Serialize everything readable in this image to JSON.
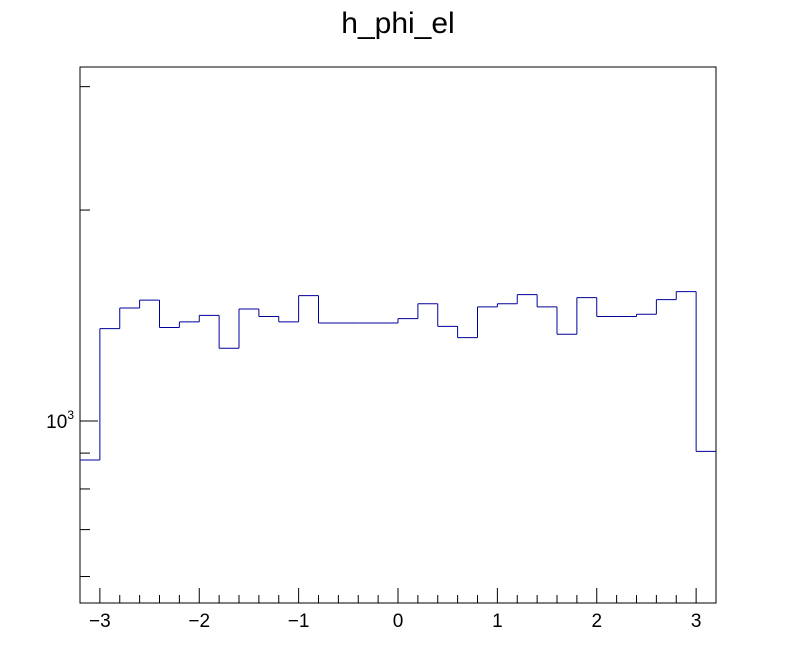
{
  "chart_data": {
    "type": "histogram",
    "title": "h_phi_el",
    "xlabel": "",
    "ylabel": "",
    "xlim": [
      -3.2,
      3.2
    ],
    "ylog": true,
    "ylim": [
      550,
      3200
    ],
    "grid": false,
    "line_color": "#000099",
    "bin_edges": [
      -3.2,
      -3.0,
      -2.8,
      -2.6,
      -2.4,
      -2.2,
      -2.0,
      -1.8,
      -1.6,
      -1.4,
      -1.2,
      -1.0,
      -0.8,
      -0.6,
      -0.4,
      -0.2,
      0.0,
      0.2,
      0.4,
      0.6,
      0.8,
      1.0,
      1.2,
      1.4,
      1.6,
      1.8,
      2.0,
      2.2,
      2.4,
      2.6,
      2.8,
      3.0,
      3.2
    ],
    "counts": [
      880,
      1355,
      1450,
      1488,
      1360,
      1385,
      1415,
      1270,
      1445,
      1410,
      1385,
      1510,
      1380,
      1380,
      1380,
      1380,
      1400,
      1470,
      1365,
      1315,
      1455,
      1470,
      1515,
      1455,
      1330,
      1500,
      1410,
      1410,
      1420,
      1490,
      1530,
      905
    ],
    "x_ticks": [
      {
        "value": -3,
        "label": "−3"
      },
      {
        "value": -2,
        "label": "−2"
      },
      {
        "value": -1,
        "label": "−1"
      },
      {
        "value": 0,
        "label": "0"
      },
      {
        "value": 1,
        "label": "1"
      },
      {
        "value": 2,
        "label": "2"
      },
      {
        "value": 3,
        "label": "3"
      }
    ],
    "y_ticks": [
      {
        "value": 1000,
        "label": "10",
        "exponent": "3"
      }
    ]
  }
}
